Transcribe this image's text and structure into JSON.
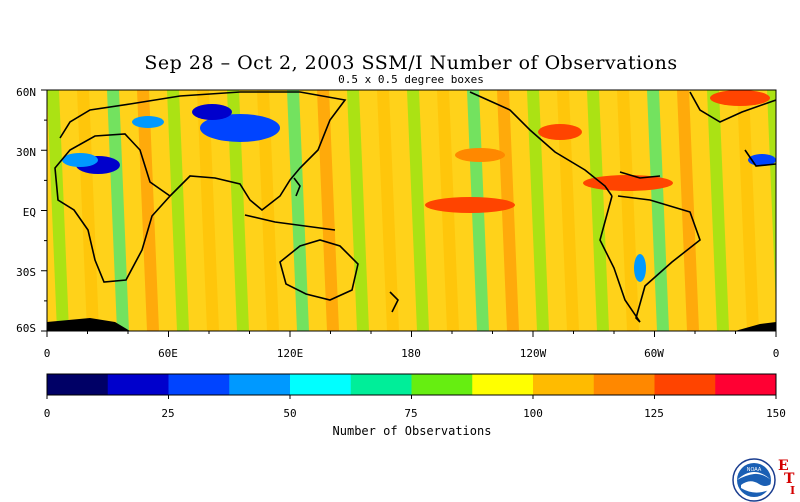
{
  "header": {
    "title": "Sep 28 – Oct 2, 2003 SSM/I Number of Observations",
    "subtitle": "0.5 x 0.5 degree boxes"
  },
  "map": {
    "lat_labels": [
      "60N",
      "30N",
      "EQ",
      "30S",
      "60S"
    ],
    "lon_labels": [
      "0",
      "60E",
      "120E",
      "180",
      "120W",
      "60W",
      "0"
    ]
  },
  "colorbar": {
    "title": "Number of Observations",
    "tick_labels": [
      "0",
      "25",
      "50",
      "75",
      "100",
      "125",
      "150"
    ],
    "colors": [
      "#000066",
      "#0000cc",
      "#0044ff",
      "#0099ff",
      "#00ffff",
      "#00ee99",
      "#66ee11",
      "#ffff00",
      "#ffbb00",
      "#ff8800",
      "#ff4400",
      "#ff0033"
    ]
  },
  "logos": {
    "agency_text": "NOAA",
    "letters": [
      "E",
      "T",
      "I"
    ]
  }
}
